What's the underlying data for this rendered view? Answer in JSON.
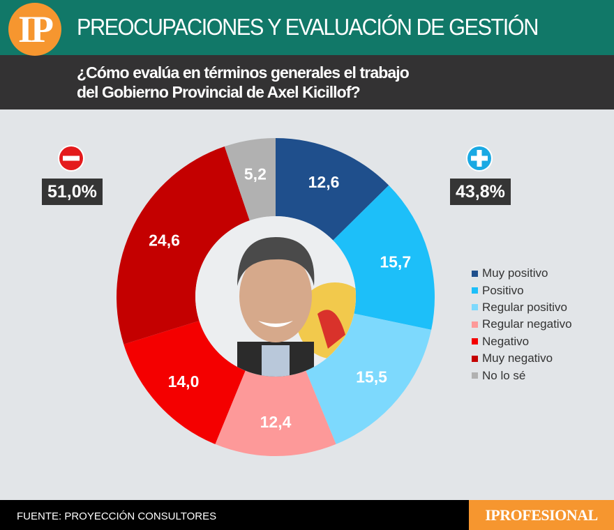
{
  "header": {
    "logo_text": "IP",
    "title": "PREOCUPACIONES Y EVALUACIÓN DE GESTIÓN",
    "question_line1": "¿Cómo evalúa en términos generales el trabajo",
    "question_line2": "del Gobierno Provincial de Axel Kicillof?"
  },
  "summary": {
    "negative_icon": "minus-circle-icon",
    "negative_total": "51,0%",
    "positive_icon": "plus-circle-icon",
    "positive_total": "43,8%"
  },
  "legend": [
    {
      "label": "Muy positivo",
      "color": "#1f4f8c"
    },
    {
      "label": "Positivo",
      "color": "#1dbff9"
    },
    {
      "label": "Regular positivo",
      "color": "#7dd9fd"
    },
    {
      "label": "Regular negativo",
      "color": "#fd9999"
    },
    {
      "label": "Negativo",
      "color": "#f40000"
    },
    {
      "label": "Muy negativo",
      "color": "#c40000"
    },
    {
      "label": "No lo sé",
      "color": "#b1b1b1"
    }
  ],
  "chart_data": {
    "type": "pie",
    "subtype": "donut",
    "title": "¿Cómo evalúa en términos generales el trabajo del Gobierno Provincial de Axel Kicillof?",
    "categories": [
      "Muy positivo",
      "Positivo",
      "Regular positivo",
      "Regular negativo",
      "Negativo",
      "Muy negativo",
      "No lo sé"
    ],
    "values": [
      12.6,
      15.7,
      15.5,
      12.4,
      14.0,
      24.6,
      5.2
    ],
    "labels": [
      "12,6",
      "15,7",
      "15,5",
      "12,4",
      "14,0",
      "24,6",
      "5,2"
    ],
    "colors": [
      "#1f4f8c",
      "#1dbff9",
      "#7dd9fd",
      "#fd9999",
      "#f40000",
      "#c40000",
      "#b1b1b1"
    ],
    "groups": {
      "positive_total": 43.8,
      "negative_total": 51.0
    },
    "start_angle": "12 o'clock, clockwise",
    "legend_position": "right"
  },
  "footer": {
    "source": "FUENTE: PROYECCIÓN CONSULTORES",
    "brand": "IPROFESIONAL"
  }
}
